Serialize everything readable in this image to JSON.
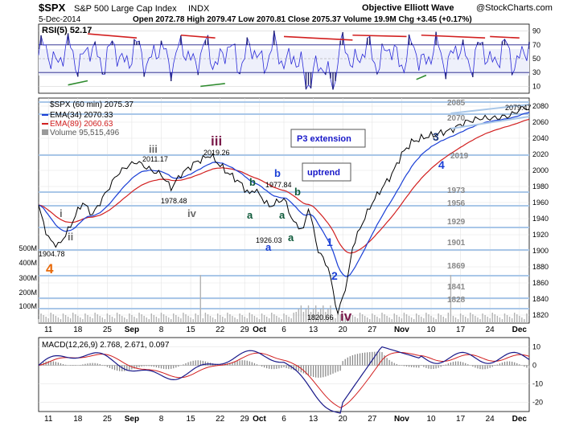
{
  "header": {
    "symbol": "$SPX",
    "name": "S&P 500 Large Cap Index",
    "exchange": "INDX",
    "source": "Objective Elliott Wave",
    "copyright": "@StockCharts.com",
    "date": "5-Dec-2014",
    "ohlc": "Open 2072.78  High 2079.47  Low 2070.81  Close 2075.37  Volume 19.9M  Chg +3.45 (+0.17%)"
  },
  "rsi_panel": {
    "label": "RSI(5) 52.17",
    "ticks": [
      10,
      30,
      50,
      70,
      90
    ],
    "levels_shaded": [
      30,
      70
    ]
  },
  "price_panel": {
    "legend": [
      {
        "text": "$SPX (60 min) 2075.37",
        "color": "#000000"
      },
      {
        "text": "EMA(34) 2070.33",
        "color": "#1a3fd6"
      },
      {
        "text": "EMA(89) 2060.63",
        "color": "#d21f1f"
      },
      {
        "text": "Volume 95,515,496",
        "color": "#8a8a8a"
      }
    ],
    "y_ticks": [
      1820,
      1840,
      1860,
      1880,
      1900,
      1920,
      1940,
      1960,
      1980,
      2000,
      2020,
      2040,
      2060,
      2080
    ],
    "vol_ticks": [
      "100M",
      "200M",
      "300M",
      "400M",
      "500M"
    ],
    "level_labels": [
      "2085",
      "2070",
      "2019",
      "1973",
      "1956",
      "1929",
      "1901",
      "1869",
      "1841",
      "1828"
    ],
    "price_labels": [
      "1904.78",
      "2011.17",
      "1978.48",
      "2019.26",
      "1977.84",
      "1926.03",
      "1820.66",
      "2079.47"
    ],
    "boxes": [
      "P3 extension",
      "uptrend"
    ],
    "wave_labels": {
      "w4": "4",
      "i1": "i",
      "ii": "ii",
      "iii_small": "iii",
      "iv_small": "iv",
      "iii_big": "iii",
      "iv_big": "iv",
      "a1": "a",
      "b1": "b",
      "a2": "a",
      "b2": "b",
      "a3": "a",
      "b3": "b",
      "a4": "a",
      "w1": "1",
      "w2": "2",
      "w3": "3",
      "w4b": "4"
    }
  },
  "macd_panel": {
    "label": "MACD(12,26,9) 2.768, 2.671, 0.097",
    "ticks": [
      -20,
      -10,
      0,
      10
    ]
  },
  "x_axis_labels": [
    "11",
    "18",
    "25",
    "Sep",
    "8",
    "15",
    "22",
    "29",
    "Oct",
    "6",
    "13",
    "20",
    "27",
    "Nov",
    "10",
    "17",
    "24",
    "Dec"
  ],
  "chart_data": {
    "type": "line",
    "title": "$SPX S&P 500 Large Cap Index INDX",
    "series": [
      {
        "name": "$SPX (60 min)",
        "x_index": [
          0,
          4,
          8,
          12,
          16,
          18,
          22,
          28,
          32,
          36,
          40,
          46,
          50,
          54,
          58,
          64,
          70,
          76,
          82,
          86,
          88,
          94,
          100,
          104,
          108,
          110,
          114,
          118,
          122,
          126,
          128,
          132,
          136,
          140,
          144,
          148,
          152,
          156,
          162,
          168,
          174,
          180,
          186,
          192,
          198,
          200
        ],
        "values": [
          1955,
          1915,
          1906,
          1925,
          1950,
          1960,
          1945,
          1975,
          1995,
          2005,
          2011,
          2000,
          1995,
          1978,
          1995,
          2010,
          2019,
          2000,
          1985,
          1970,
          1977,
          1955,
          1965,
          1935,
          1926,
          1955,
          1900,
          1880,
          1821,
          1865,
          1905,
          1935,
          1960,
          1978,
          1995,
          2020,
          2035,
          2040,
          2045,
          2050,
          2060,
          2065,
          2065,
          2068,
          2079,
          2075
        ]
      },
      {
        "name": "EMA(34)",
        "values_end": 2070.33
      },
      {
        "name": "EMA(89)",
        "values_end": 2060.63
      }
    ],
    "x_label_days": [
      "11",
      "18",
      "25",
      "Sep",
      "8",
      "15",
      "22",
      "29",
      "Oct",
      "6",
      "13",
      "20",
      "27",
      "Nov",
      "10",
      "17",
      "24",
      "Dec"
    ],
    "levels": [
      2085,
      2070,
      2019,
      1973,
      1956,
      1929,
      1901,
      1869,
      1841,
      1828
    ],
    "ylim": [
      1810,
      2090
    ],
    "grid": true,
    "rsi": {
      "value": 52.17,
      "ylim": [
        0,
        100
      ]
    },
    "macd": {
      "macd": 2.768,
      "signal": 2.671,
      "hist": 0.097,
      "ylim": [
        -25,
        15
      ]
    }
  }
}
